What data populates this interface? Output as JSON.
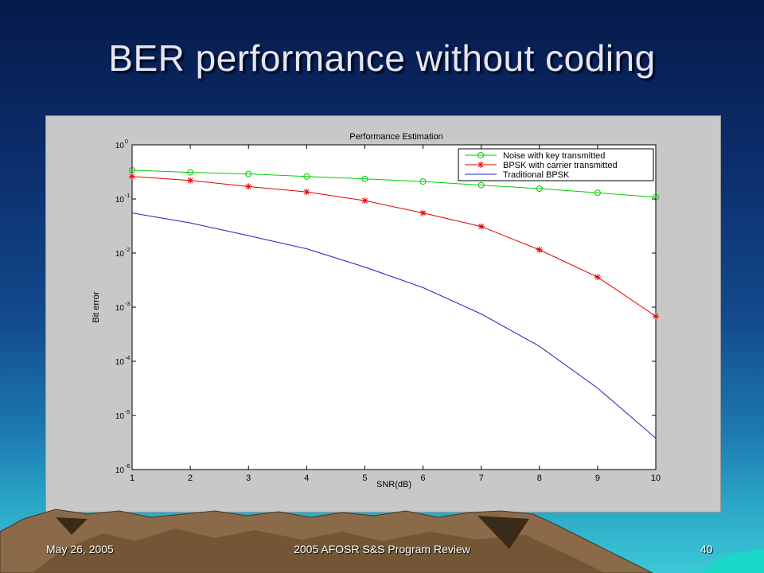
{
  "slide": {
    "title": "BER performance without coding",
    "footer_date": "May 26, 2005",
    "footer_center": "2005 AFOSR S&S Program Review",
    "page_number": "40"
  },
  "colors": {
    "noise_series": "#00cc00",
    "bpsk_carrier_series": "#e00000",
    "traditional_series": "#2020c0",
    "panel_background": "#c8c8c8",
    "plot_background": "#ffffff"
  },
  "chart_data": {
    "type": "line",
    "title": "Performance Estimation",
    "xlabel": "SNR(dB)",
    "ylabel": "Bit error",
    "xlim": [
      1,
      10
    ],
    "ylim": [
      1e-06,
      1
    ],
    "y_scale": "log",
    "grid": false,
    "legend_position": "top-right",
    "x_ticks": [
      "1",
      "2",
      "3",
      "4",
      "5",
      "6",
      "7",
      "8",
      "9",
      "10"
    ],
    "y_ticks": [
      {
        "base": "10",
        "exp": "0"
      },
      {
        "base": "10",
        "exp": "-1"
      },
      {
        "base": "10",
        "exp": "-2"
      },
      {
        "base": "10",
        "exp": "-3"
      },
      {
        "base": "10",
        "exp": "-4"
      },
      {
        "base": "10",
        "exp": "-5"
      },
      {
        "base": "10",
        "exp": "-6"
      }
    ],
    "x": [
      1,
      2,
      3,
      4,
      5,
      6,
      7,
      8,
      9,
      10
    ],
    "series": [
      {
        "name": "Noise with key transmitted",
        "marker": "circle",
        "color": "#00cc00",
        "values": [
          0.34,
          0.31,
          0.29,
          0.26,
          0.235,
          0.21,
          0.18,
          0.155,
          0.13,
          0.108
        ]
      },
      {
        "name": "BPSK with carrier transmitted",
        "marker": "star",
        "color": "#e00000",
        "values": [
          0.26,
          0.22,
          0.17,
          0.135,
          0.093,
          0.055,
          0.031,
          0.0115,
          0.0036,
          0.00068
        ]
      },
      {
        "name": "Traditional BPSK",
        "marker": "none",
        "color": "#2020c0",
        "values": [
          0.055,
          0.036,
          0.021,
          0.012,
          0.0055,
          0.0023,
          0.00075,
          0.00019,
          3.2e-05,
          3.8e-06
        ]
      }
    ]
  }
}
